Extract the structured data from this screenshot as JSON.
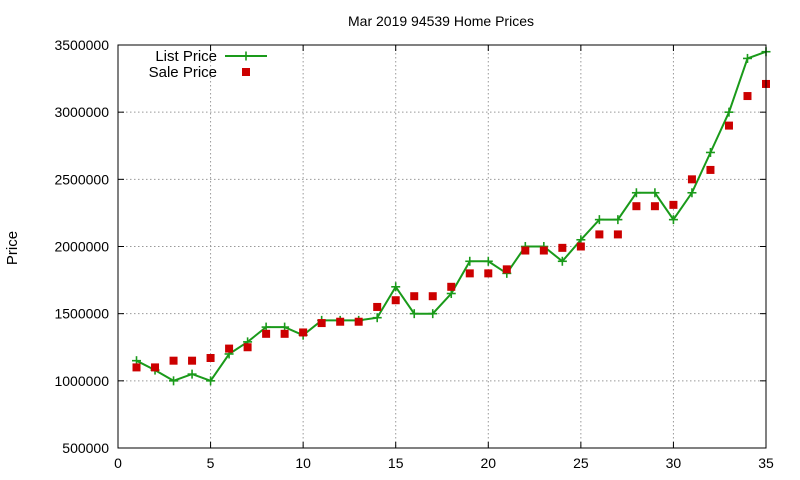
{
  "chart_data": {
    "type": "line",
    "title": "Mar 2019 94539 Home Prices",
    "xlabel": "",
    "ylabel": "Price",
    "xlim": [
      0,
      35
    ],
    "ylim": [
      500000,
      3500000
    ],
    "xticks": [
      0,
      5,
      10,
      15,
      20,
      25,
      30,
      35
    ],
    "yticks": [
      500000,
      1000000,
      1500000,
      2000000,
      2500000,
      3000000,
      3500000
    ],
    "grid": true,
    "legend_position": "top-left",
    "series": [
      {
        "name": "List Price",
        "type": "line",
        "marker": "plus",
        "color": "#1a9a1a",
        "x": [
          1,
          2,
          3,
          4,
          5,
          6,
          7,
          8,
          9,
          10,
          11,
          12,
          13,
          14,
          15,
          16,
          17,
          18,
          19,
          20,
          21,
          22,
          23,
          24,
          25,
          26,
          27,
          28,
          29,
          30,
          31,
          32,
          33,
          34,
          35
        ],
        "y": [
          1150000,
          1080000,
          1000000,
          1050000,
          1000000,
          1200000,
          1290000,
          1400000,
          1400000,
          1340000,
          1450000,
          1450000,
          1450000,
          1470000,
          1700000,
          1500000,
          1500000,
          1650000,
          1890000,
          1890000,
          1800000,
          2000000,
          2000000,
          1890000,
          2050000,
          2200000,
          2200000,
          2400000,
          2400000,
          2200000,
          2400000,
          2700000,
          3000000,
          3400000,
          3450000
        ]
      },
      {
        "name": "Sale Price",
        "type": "scatter",
        "marker": "square",
        "color": "#cc0000",
        "x": [
          1,
          2,
          3,
          4,
          5,
          6,
          7,
          8,
          9,
          10,
          11,
          12,
          13,
          14,
          15,
          16,
          17,
          18,
          19,
          20,
          21,
          22,
          23,
          24,
          25,
          26,
          27,
          28,
          29,
          30,
          31,
          32,
          33,
          34,
          35
        ],
        "y": [
          1100000,
          1100000,
          1150000,
          1150000,
          1170000,
          1240000,
          1250000,
          1350000,
          1350000,
          1360000,
          1430000,
          1440000,
          1440000,
          1550000,
          1600000,
          1630000,
          1630000,
          1700000,
          1800000,
          1800000,
          1830000,
          1970000,
          1970000,
          1990000,
          2000000,
          2090000,
          2090000,
          2300000,
          2300000,
          2310000,
          2500000,
          2570000,
          2900000,
          3120000,
          3210000
        ]
      }
    ]
  }
}
